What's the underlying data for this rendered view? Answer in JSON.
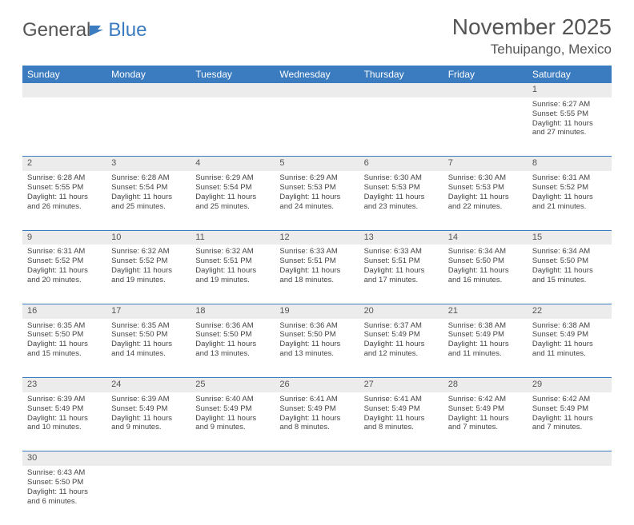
{
  "logo": {
    "part1": "General",
    "part2": "Blue"
  },
  "title": "November 2025",
  "location": "Tehuipango, Mexico",
  "colors": {
    "header_bg": "#3b7bbf",
    "header_text": "#ffffff",
    "daynum_bg": "#ececec",
    "border": "#3b7bbf",
    "text": "#444444"
  },
  "day_headers": [
    "Sunday",
    "Monday",
    "Tuesday",
    "Wednesday",
    "Thursday",
    "Friday",
    "Saturday"
  ],
  "weeks": [
    [
      null,
      null,
      null,
      null,
      null,
      null,
      {
        "n": "1",
        "sunrise": "6:27 AM",
        "sunset": "5:55 PM",
        "dl": "11 hours and 27 minutes."
      }
    ],
    [
      {
        "n": "2",
        "sunrise": "6:28 AM",
        "sunset": "5:55 PM",
        "dl": "11 hours and 26 minutes."
      },
      {
        "n": "3",
        "sunrise": "6:28 AM",
        "sunset": "5:54 PM",
        "dl": "11 hours and 25 minutes."
      },
      {
        "n": "4",
        "sunrise": "6:29 AM",
        "sunset": "5:54 PM",
        "dl": "11 hours and 25 minutes."
      },
      {
        "n": "5",
        "sunrise": "6:29 AM",
        "sunset": "5:53 PM",
        "dl": "11 hours and 24 minutes."
      },
      {
        "n": "6",
        "sunrise": "6:30 AM",
        "sunset": "5:53 PM",
        "dl": "11 hours and 23 minutes."
      },
      {
        "n": "7",
        "sunrise": "6:30 AM",
        "sunset": "5:53 PM",
        "dl": "11 hours and 22 minutes."
      },
      {
        "n": "8",
        "sunrise": "6:31 AM",
        "sunset": "5:52 PM",
        "dl": "11 hours and 21 minutes."
      }
    ],
    [
      {
        "n": "9",
        "sunrise": "6:31 AM",
        "sunset": "5:52 PM",
        "dl": "11 hours and 20 minutes."
      },
      {
        "n": "10",
        "sunrise": "6:32 AM",
        "sunset": "5:52 PM",
        "dl": "11 hours and 19 minutes."
      },
      {
        "n": "11",
        "sunrise": "6:32 AM",
        "sunset": "5:51 PM",
        "dl": "11 hours and 19 minutes."
      },
      {
        "n": "12",
        "sunrise": "6:33 AM",
        "sunset": "5:51 PM",
        "dl": "11 hours and 18 minutes."
      },
      {
        "n": "13",
        "sunrise": "6:33 AM",
        "sunset": "5:51 PM",
        "dl": "11 hours and 17 minutes."
      },
      {
        "n": "14",
        "sunrise": "6:34 AM",
        "sunset": "5:50 PM",
        "dl": "11 hours and 16 minutes."
      },
      {
        "n": "15",
        "sunrise": "6:34 AM",
        "sunset": "5:50 PM",
        "dl": "11 hours and 15 minutes."
      }
    ],
    [
      {
        "n": "16",
        "sunrise": "6:35 AM",
        "sunset": "5:50 PM",
        "dl": "11 hours and 15 minutes."
      },
      {
        "n": "17",
        "sunrise": "6:35 AM",
        "sunset": "5:50 PM",
        "dl": "11 hours and 14 minutes."
      },
      {
        "n": "18",
        "sunrise": "6:36 AM",
        "sunset": "5:50 PM",
        "dl": "11 hours and 13 minutes."
      },
      {
        "n": "19",
        "sunrise": "6:36 AM",
        "sunset": "5:50 PM",
        "dl": "11 hours and 13 minutes."
      },
      {
        "n": "20",
        "sunrise": "6:37 AM",
        "sunset": "5:49 PM",
        "dl": "11 hours and 12 minutes."
      },
      {
        "n": "21",
        "sunrise": "6:38 AM",
        "sunset": "5:49 PM",
        "dl": "11 hours and 11 minutes."
      },
      {
        "n": "22",
        "sunrise": "6:38 AM",
        "sunset": "5:49 PM",
        "dl": "11 hours and 11 minutes."
      }
    ],
    [
      {
        "n": "23",
        "sunrise": "6:39 AM",
        "sunset": "5:49 PM",
        "dl": "11 hours and 10 minutes."
      },
      {
        "n": "24",
        "sunrise": "6:39 AM",
        "sunset": "5:49 PM",
        "dl": "11 hours and 9 minutes."
      },
      {
        "n": "25",
        "sunrise": "6:40 AM",
        "sunset": "5:49 PM",
        "dl": "11 hours and 9 minutes."
      },
      {
        "n": "26",
        "sunrise": "6:41 AM",
        "sunset": "5:49 PM",
        "dl": "11 hours and 8 minutes."
      },
      {
        "n": "27",
        "sunrise": "6:41 AM",
        "sunset": "5:49 PM",
        "dl": "11 hours and 8 minutes."
      },
      {
        "n": "28",
        "sunrise": "6:42 AM",
        "sunset": "5:49 PM",
        "dl": "11 hours and 7 minutes."
      },
      {
        "n": "29",
        "sunrise": "6:42 AM",
        "sunset": "5:49 PM",
        "dl": "11 hours and 7 minutes."
      }
    ],
    [
      {
        "n": "30",
        "sunrise": "6:43 AM",
        "sunset": "5:50 PM",
        "dl": "11 hours and 6 minutes."
      },
      null,
      null,
      null,
      null,
      null,
      null
    ]
  ],
  "labels": {
    "sunrise": "Sunrise:",
    "sunset": "Sunset:",
    "daylight": "Daylight:"
  }
}
